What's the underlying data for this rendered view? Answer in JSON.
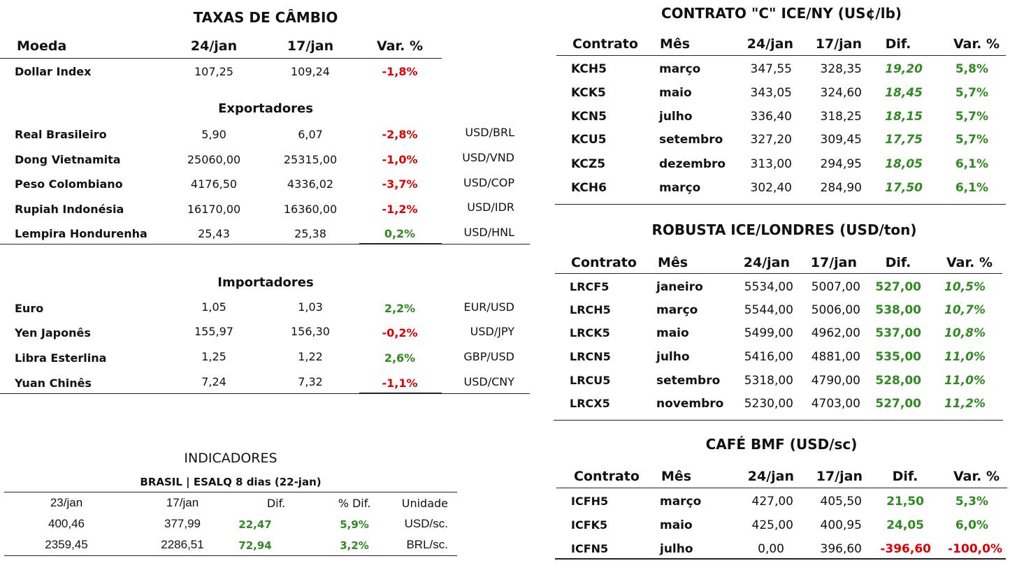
{
  "fx": {
    "title": "TAXAS DE CÂMBIO",
    "headers": {
      "currency": "Moeda",
      "d1": "24/jan",
      "d2": "17/jan",
      "var": "Var. %"
    },
    "dollar_index": {
      "name": "Dollar Index",
      "d1": "107,25",
      "d2": "109,24",
      "var": "-1,8%"
    },
    "exporters_title": "Exportadores",
    "exporters": [
      {
        "name": "Real Brasileiro",
        "d1": "5,90",
        "d2": "6,07",
        "var": "-2,8%",
        "code": "USD/BRL"
      },
      {
        "name": "Dong Vietnamita",
        "d1": "25060,00",
        "d2": "25315,00",
        "var": "-1,0%",
        "code": "USD/VND"
      },
      {
        "name": "Peso Colombiano",
        "d1": "4176,50",
        "d2": "4336,02",
        "var": "-3,7%",
        "code": "USD/COP"
      },
      {
        "name": "Rupiah Indonésia",
        "d1": "16170,00",
        "d2": "16360,00",
        "var": "-1,2%",
        "code": "USD/IDR"
      },
      {
        "name": "Lempira Hondurenha",
        "d1": "25,43",
        "d2": "25,38",
        "var": "0,2%",
        "code": "USD/HNL"
      }
    ],
    "importers_title": "Importadores",
    "importers": [
      {
        "name": "Euro",
        "d1": "1,05",
        "d2": "1,03",
        "var": "2,2%",
        "code": "EUR/USD"
      },
      {
        "name": "Yen Japonês",
        "d1": "155,97",
        "d2": "156,30",
        "var": "-0,2%",
        "code": "USD/JPY"
      },
      {
        "name": "Libra Esterlina",
        "d1": "1,25",
        "d2": "1,22",
        "var": "2,6%",
        "code": "GBP/USD"
      },
      {
        "name": "Yuan Chinês",
        "d1": "7,24",
        "d2": "7,32",
        "var": "-1,1%",
        "code": "USD/CNY"
      }
    ]
  },
  "indicators": {
    "title": "INDICADORES",
    "subtitle": "BRASIL | ESALQ 8 dias (22-jan)",
    "headers": {
      "d1": "23/jan",
      "d2": "17/jan",
      "dif": "Dif.",
      "pdif": "% Dif.",
      "unit": "Unidade"
    },
    "rows": [
      {
        "d1": "400,46",
        "d2": "377,99",
        "dif": "22,47",
        "pdif": "5,9%",
        "unit": "USD/sc."
      },
      {
        "d1": "2359,45",
        "d2": "2286,51",
        "dif": "72,94",
        "pdif": "3,2%",
        "unit": "BRL/sc."
      }
    ]
  },
  "contract_c": {
    "title": "CONTRATO \"C\" ICE/NY (US¢/lb)",
    "headers": {
      "contract": "Contrato",
      "month": "Mês",
      "d1": "24/jan",
      "d2": "17/jan",
      "dif": "Dif.",
      "var": "Var. %"
    },
    "rows": [
      {
        "contract": "KCH5",
        "month": "março",
        "d1": "347,55",
        "d2": "328,35",
        "dif": "19,20",
        "var": "5,8%"
      },
      {
        "contract": "KCK5",
        "month": "maio",
        "d1": "343,05",
        "d2": "324,60",
        "dif": "18,45",
        "var": "5,7%"
      },
      {
        "contract": "KCN5",
        "month": "julho",
        "d1": "336,40",
        "d2": "318,25",
        "dif": "18,15",
        "var": "5,7%"
      },
      {
        "contract": "KCU5",
        "month": "setembro",
        "d1": "327,20",
        "d2": "309,45",
        "dif": "17,75",
        "var": "5,7%"
      },
      {
        "contract": "KCZ5",
        "month": "dezembro",
        "d1": "313,00",
        "d2": "294,95",
        "dif": "18,05",
        "var": "6,1%"
      },
      {
        "contract": "KCH6",
        "month": "março",
        "d1": "302,40",
        "d2": "284,90",
        "dif": "17,50",
        "var": "6,1%"
      }
    ]
  },
  "robusta": {
    "title": "ROBUSTA ICE/LONDRES (USD/ton)",
    "headers": {
      "contract": "Contrato",
      "month": "Mês",
      "d1": "24/jan",
      "d2": "17/jan",
      "dif": "Dif.",
      "var": "Var. %"
    },
    "rows": [
      {
        "contract": "LRCF5",
        "month": "janeiro",
        "d1": "5534,00",
        "d2": "5007,00",
        "dif": "527,00",
        "var": "10,5%"
      },
      {
        "contract": "LRCH5",
        "month": "março",
        "d1": "5544,00",
        "d2": "5006,00",
        "dif": "538,00",
        "var": "10,7%"
      },
      {
        "contract": "LRCK5",
        "month": "maio",
        "d1": "5499,00",
        "d2": "4962,00",
        "dif": "537,00",
        "var": "10,8%"
      },
      {
        "contract": "LRCN5",
        "month": "julho",
        "d1": "5416,00",
        "d2": "4881,00",
        "dif": "535,00",
        "var": "11,0%"
      },
      {
        "contract": "LRCU5",
        "month": "setembro",
        "d1": "5318,00",
        "d2": "4790,00",
        "dif": "528,00",
        "var": "11,0%"
      },
      {
        "contract": "LRCX5",
        "month": "novembro",
        "d1": "5230,00",
        "d2": "4703,00",
        "dif": "527,00",
        "var": "11,2%"
      }
    ]
  },
  "bmf": {
    "title": "CAFÉ BMF (USD/sc)",
    "headers": {
      "contract": "Contrato",
      "month": "Mês",
      "d1": "24/jan",
      "d2": "17/jan",
      "dif": "Dif.",
      "var": "Var. %"
    },
    "rows": [
      {
        "contract": "ICFH5",
        "month": "março",
        "d1": "427,00",
        "d2": "405,50",
        "dif": "21,50",
        "var": "5,3%"
      },
      {
        "contract": "ICFK5",
        "month": "maio",
        "d1": "425,00",
        "d2": "400,95",
        "dif": "24,05",
        "var": "6,0%"
      },
      {
        "contract": "ICFN5",
        "month": "julho",
        "d1": "0,00",
        "d2": "396,60",
        "dif": "-396,60",
        "var": "-100,0%"
      }
    ]
  },
  "colors": {
    "negative": "#e00000",
    "positive": "#2e8b1f"
  }
}
